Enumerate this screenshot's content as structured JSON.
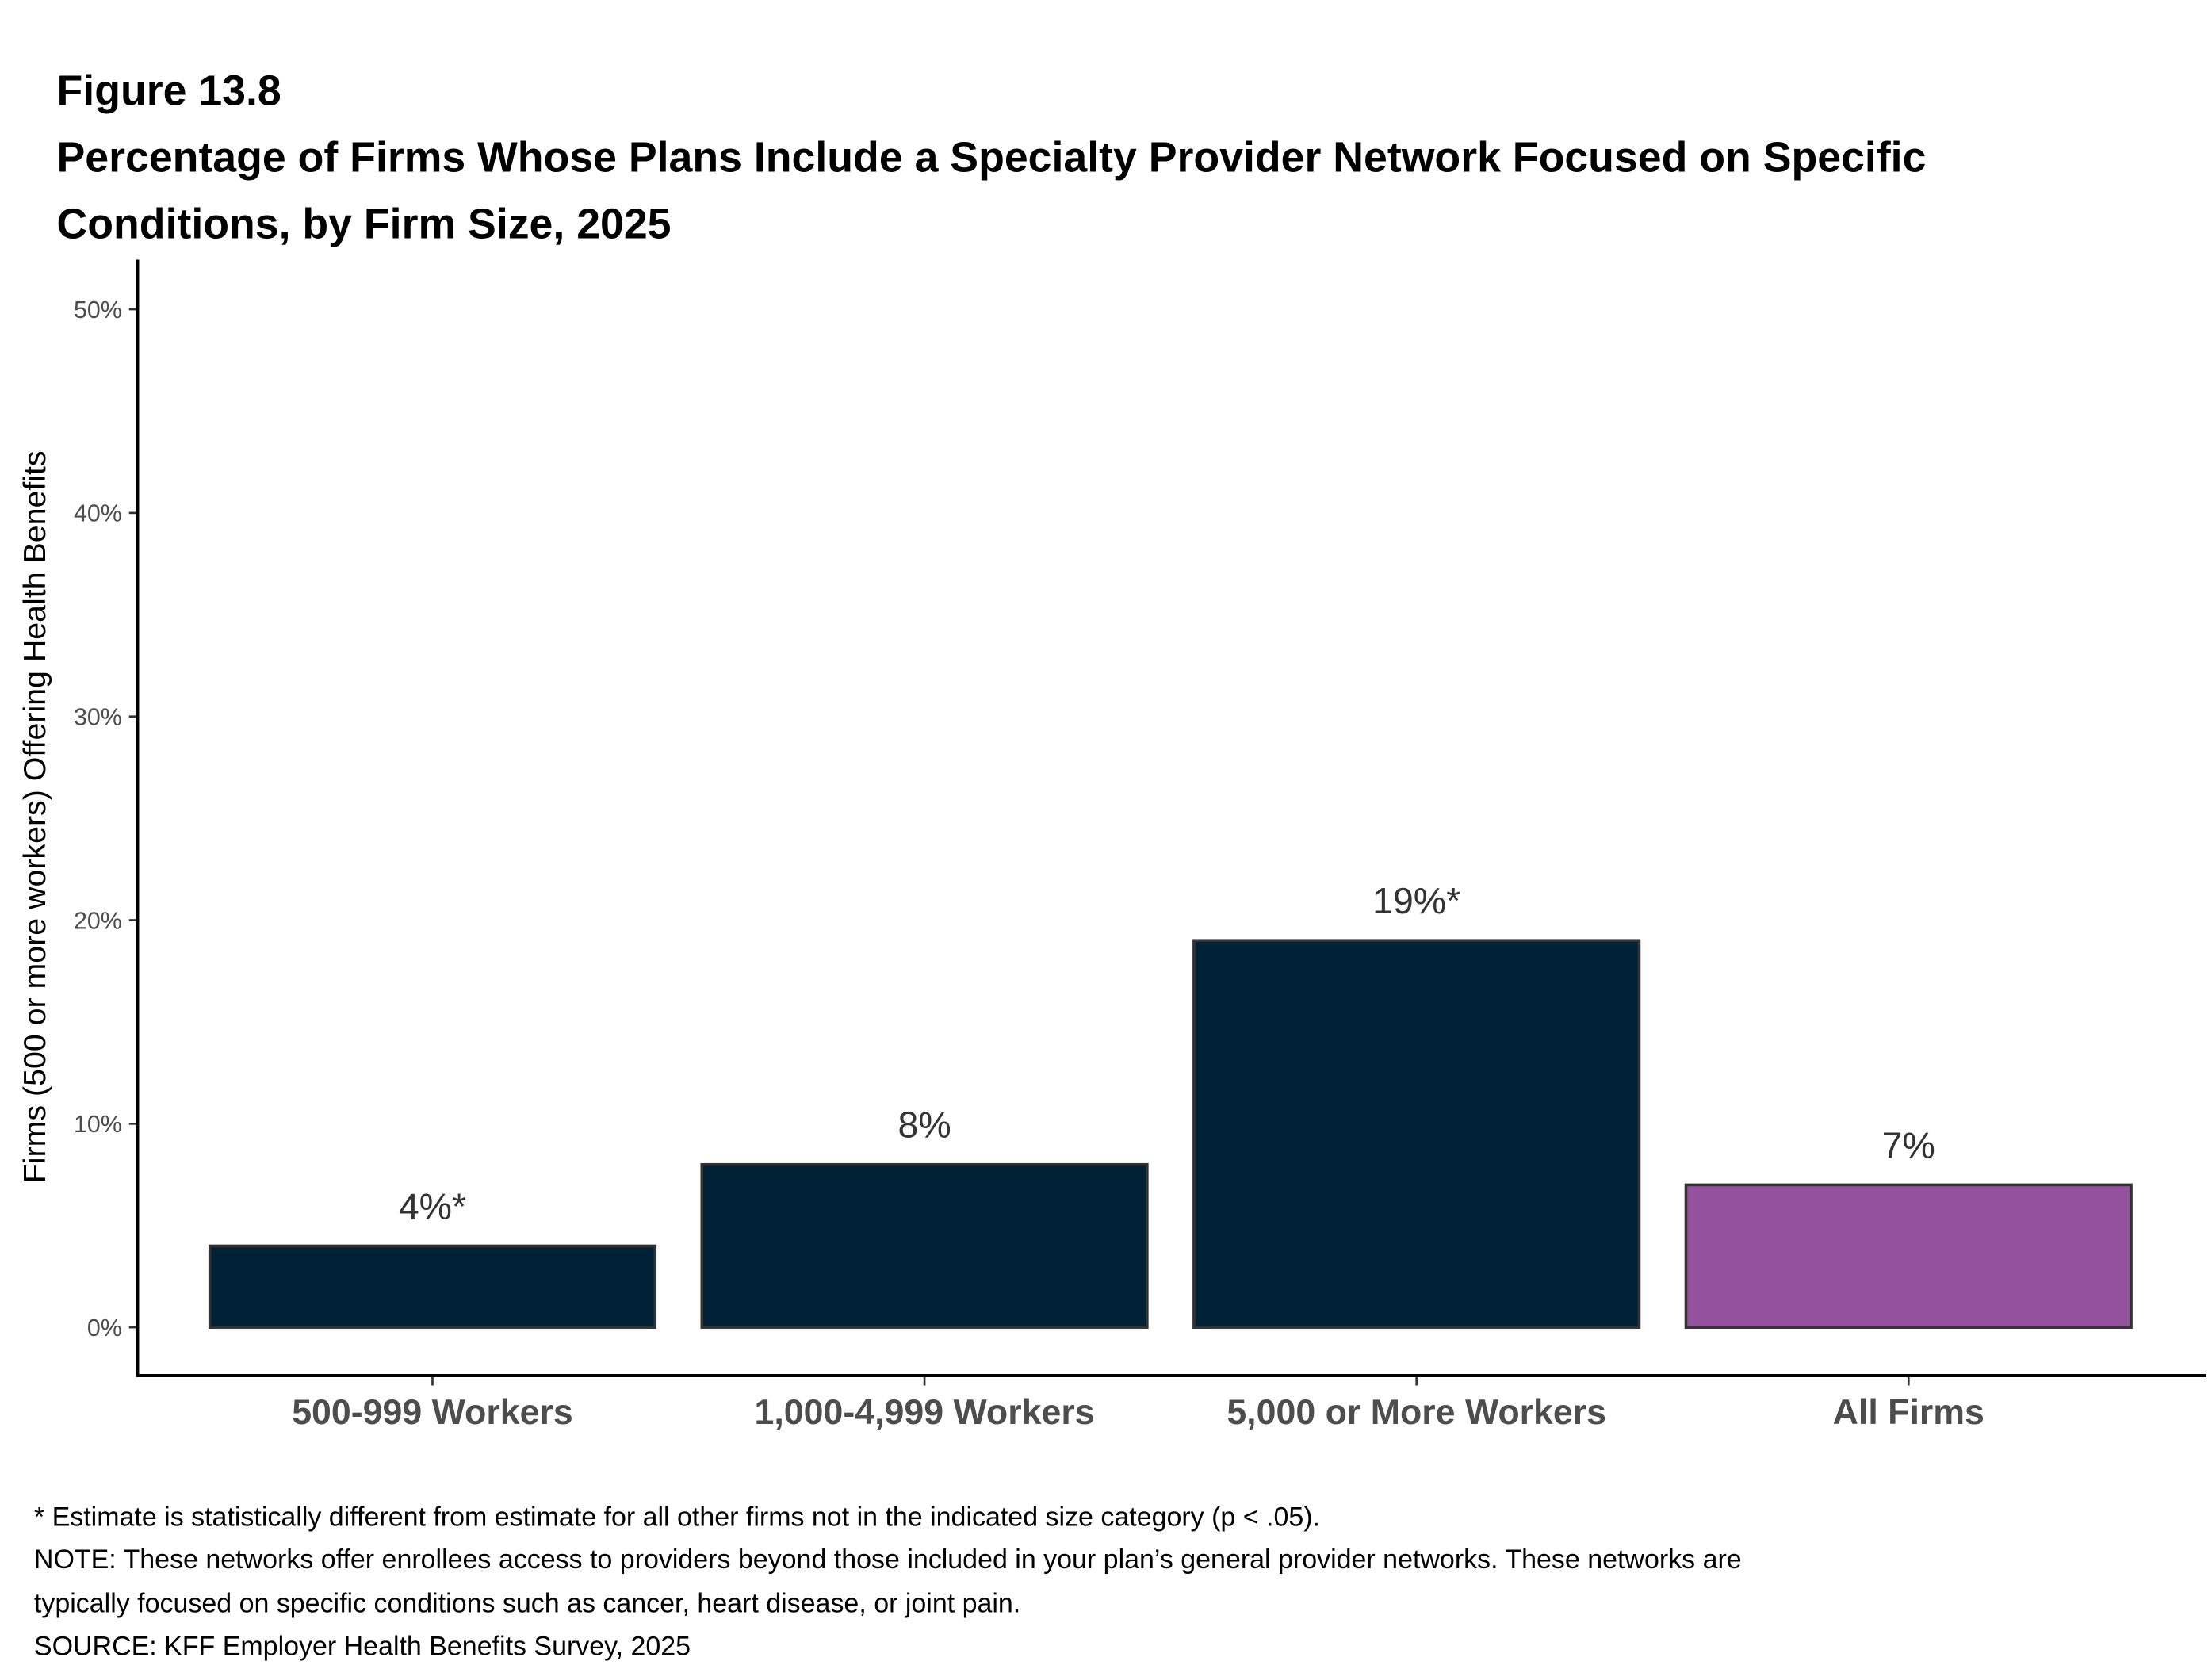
{
  "figure_label": "Figure 13.8",
  "title_lines": [
    "Percentage of Firms Whose Plans Include a Specialty Provider Network Focused on Specific",
    "Conditions, by Firm Size, 2025"
  ],
  "notes": [
    "* Estimate is statistically different from estimate for all other firms not in the indicated size category (p < .05).",
    "NOTE: These networks offer enrollees access to providers beyond those included in your plan’s general provider networks.  These networks are",
    "typically focused on specific conditions such as cancer, heart disease, or joint pain.",
    "SOURCE: KFF Employer Health Benefits Survey, 2025"
  ],
  "colors": {
    "bar": "#012137",
    "all_firms": "#94529e",
    "outline": "#333333"
  },
  "chart_data": {
    "type": "bar",
    "title": "Percentage of Firms Whose Plans Include a Specialty Provider Network Focused on Specific Conditions, by Firm Size, 2025",
    "xlabel": "",
    "ylabel": "Firms (500 or more workers) Offering Health Benefits",
    "ylim": [
      0,
      50
    ],
    "yticks": [
      0,
      10,
      20,
      30,
      40,
      50
    ],
    "ytick_labels": [
      "0%",
      "10%",
      "20%",
      "30%",
      "40%",
      "50%"
    ],
    "categories": [
      "500-999 Workers",
      "1,000-4,999 Workers",
      "5,000 or More Workers",
      "All Firms"
    ],
    "values": [
      4,
      8,
      19,
      7
    ],
    "data_labels": [
      "4%*",
      "8%",
      "19%*",
      "7%"
    ],
    "grid": false,
    "legend": "none"
  }
}
